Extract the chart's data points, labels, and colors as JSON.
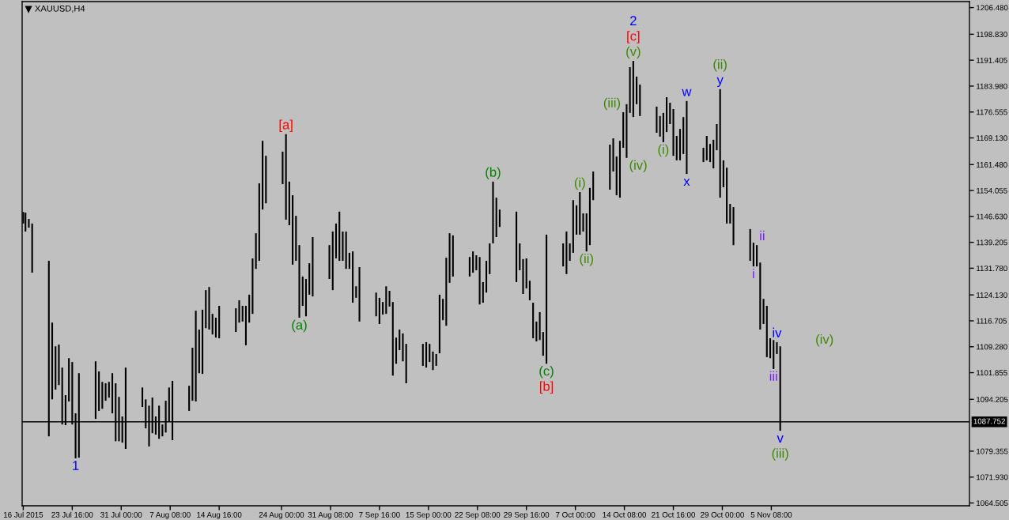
{
  "chart_data": {
    "type": "bar",
    "title": "XAUUSD,H4",
    "color": "#000000",
    "x": [
      "2015-07-16T08:00",
      "2015-07-16T16:00",
      "2015-07-17T04:00",
      "2015-07-17T16:00",
      "2015-07-20T04:00",
      "2015-07-20T16:00",
      "2015-07-21T04:00",
      "2015-07-21T16:00",
      "2015-07-22T04:00",
      "2015-07-22T16:00",
      "2015-07-23T04:00",
      "2015-07-23T16:00",
      "2015-07-24T04:00",
      "2015-07-24T16:00",
      "2015-07-27T04:00",
      "2015-07-27T16:00",
      "2015-07-28T04:00",
      "2015-07-28T16:00",
      "2015-07-29T04:00",
      "2015-07-29T16:00",
      "2015-07-30T04:00",
      "2015-07-30T16:00",
      "2015-07-31T04:00",
      "2015-07-31T16:00",
      "2015-08-03T04:00",
      "2015-08-03T16:00",
      "2015-08-04T04:00",
      "2015-08-04T16:00",
      "2015-08-05T04:00",
      "2015-08-05T16:00",
      "2015-08-06T04:00",
      "2015-08-06T16:00",
      "2015-08-07T04:00",
      "2015-08-07T16:00",
      "2015-08-10T04:00",
      "2015-08-10T16:00",
      "2015-08-11T04:00",
      "2015-08-11T16:00",
      "2015-08-12T04:00",
      "2015-08-12T16:00",
      "2015-08-13T04:00",
      "2015-08-13T16:00",
      "2015-08-14T04:00",
      "2015-08-14T16:00",
      "2015-08-17T04:00",
      "2015-08-17T16:00",
      "2015-08-18T04:00",
      "2015-08-18T16:00",
      "2015-08-19T04:00",
      "2015-08-19T16:00",
      "2015-08-20T04:00",
      "2015-08-20T16:00",
      "2015-08-21T04:00",
      "2015-08-21T16:00",
      "2015-08-24T04:00",
      "2015-08-24T16:00",
      "2015-08-25T04:00",
      "2015-08-25T16:00",
      "2015-08-26T04:00",
      "2015-08-26T16:00",
      "2015-08-27T04:00",
      "2015-08-27T16:00",
      "2015-08-28T04:00",
      "2015-08-28T16:00",
      "2015-08-31T04:00",
      "2015-08-31T16:00",
      "2015-09-01T04:00",
      "2015-09-01T16:00",
      "2015-09-02T04:00",
      "2015-09-02T16:00",
      "2015-09-03T04:00",
      "2015-09-03T16:00",
      "2015-09-04T04:00",
      "2015-09-04T16:00",
      "2015-09-07T04:00",
      "2015-09-07T16:00",
      "2015-09-08T04:00",
      "2015-09-08T16:00",
      "2015-09-09T04:00",
      "2015-09-09T16:00",
      "2015-09-10T04:00",
      "2015-09-10T16:00",
      "2015-09-11T04:00",
      "2015-09-11T16:00",
      "2015-09-14T04:00",
      "2015-09-14T16:00",
      "2015-09-15T04:00",
      "2015-09-15T16:00",
      "2015-09-16T04:00",
      "2015-09-16T16:00",
      "2015-09-17T04:00",
      "2015-09-17T16:00",
      "2015-09-18T04:00",
      "2015-09-18T16:00",
      "2015-09-21T04:00",
      "2015-09-21T16:00",
      "2015-09-22T04:00",
      "2015-09-22T16:00",
      "2015-09-23T04:00",
      "2015-09-23T16:00",
      "2015-09-24T04:00",
      "2015-09-24T16:00",
      "2015-09-25T04:00",
      "2015-09-25T16:00",
      "2015-09-28T04:00",
      "2015-09-28T16:00",
      "2015-09-29T04:00",
      "2015-09-29T16:00",
      "2015-09-30T04:00",
      "2015-09-30T16:00",
      "2015-10-01T04:00",
      "2015-10-01T16:00",
      "2015-10-02T04:00",
      "2015-10-02T16:00",
      "2015-10-05T04:00",
      "2015-10-05T16:00",
      "2015-10-06T04:00",
      "2015-10-06T16:00",
      "2015-10-07T04:00",
      "2015-10-07T16:00",
      "2015-10-08T04:00",
      "2015-10-08T16:00",
      "2015-10-09T04:00",
      "2015-10-09T16:00",
      "2015-10-12T04:00",
      "2015-10-12T16:00",
      "2015-10-13T04:00",
      "2015-10-13T16:00",
      "2015-10-14T04:00",
      "2015-10-14T16:00",
      "2015-10-15T04:00",
      "2015-10-15T16:00",
      "2015-10-16T04:00",
      "2015-10-16T16:00",
      "2015-10-19T04:00",
      "2015-10-19T16:00",
      "2015-10-20T04:00",
      "2015-10-20T16:00",
      "2015-10-21T04:00",
      "2015-10-21T16:00",
      "2015-10-22T04:00",
      "2015-10-22T16:00",
      "2015-10-23T04:00",
      "2015-10-23T16:00",
      "2015-10-26T04:00",
      "2015-10-26T16:00",
      "2015-10-27T04:00",
      "2015-10-27T16:00",
      "2015-10-28T04:00",
      "2015-10-28T16:00",
      "2015-10-29T04:00",
      "2015-10-29T16:00",
      "2015-10-30T04:00",
      "2015-10-30T16:00",
      "2015-11-02T04:00",
      "2015-11-02T16:00",
      "2015-11-03T04:00",
      "2015-11-03T16:00",
      "2015-11-04T04:00",
      "2015-11-04T16:00",
      "2015-11-05T04:00",
      "2015-11-05T16:00",
      "2015-11-06T04:00",
      "2015-11-06T16:00"
    ],
    "base": [
      1144.6,
      1142.3,
      1143.4,
      1130.5,
      1083.6,
      1094.2,
      1097.0,
      1098.3,
      1087.0,
      1086.8,
      1093.6,
      1087.0,
      1077.3,
      1077.5,
      1088.6,
      1090.9,
      1091.5,
      1093.8,
      1094.7,
      1090.2,
      1082.2,
      1082.2,
      1081.8,
      1080.0,
      1092.0,
      1085.9,
      1080.7,
      1084.5,
      1084.1,
      1082.9,
      1083.6,
      1084.7,
      1087.9,
      1082.5,
      1090.9,
      1093.8,
      1093.6,
      1101.7,
      1101.5,
      1114.6,
      1114.2,
      1112.8,
      1111.9,
      1111.7,
      1113.5,
      1116.2,
      1116.5,
      1109.7,
      1116.2,
      1118.7,
      1131.6,
      1133.9,
      1148.6,
      1150.4,
      1155.9,
      1145.7,
      1144.1,
      1132.8,
      1133.9,
      1117.6,
      1121.0,
      1118.0,
      1124.2,
      1123.7,
      1128.7,
      1125.5,
      1134.6,
      1133.9,
      1133.9,
      1131.6,
      1131.6,
      1121.9,
      1123.3,
      1116.5,
      1118.0,
      1115.8,
      1118.5,
      1118.7,
      1120.8,
      1101.0,
      1104.4,
      1108.3,
      1105.1,
      1098.8,
      1103.8,
      1103.3,
      1104.9,
      1102.6,
      1103.8,
      1107.4,
      1116.9,
      1115.3,
      1127.6,
      1129.4,
      1129.4,
      1130.5,
      1131.2,
      1121.4,
      1121.9,
      1124.8,
      1130.1,
      1138.9,
      1140.7,
      1143.6,
      1127.8,
      1131.2,
      1124.4,
      1126.0,
      1122.6,
      1111.7,
      1110.8,
      1111.2,
      1106.7,
      1104.4,
      1132.3,
      1130.1,
      1133.9,
      1136.2,
      1141.4,
      1141.4,
      1142.3,
      1136.6,
      1138.4,
      1151.3,
      1154.3,
      1159.5,
      1152.7,
      1152.0,
      1166.3,
      1163.4,
      1176.3,
      1175.1,
      1178.8,
      1175.4,
      1170.6,
      1169.5,
      1167.9,
      1170.8,
      1173.1,
      1164.0,
      1162.7,
      1162.7,
      1164.5,
      1158.8,
      1162.2,
      1162.7,
      1162.2,
      1160.4,
      1165.6,
      1152.0,
      1155.0,
      1144.6,
      1144.6,
      1138.4,
      1133.9,
      1132.3,
      1132.3,
      1114.2,
      1115.8,
      1106.3,
      1106.0,
      1102.9,
      1107.2,
      1085.2
    ],
    "values": [
      3.3,
      5.4,
      2.5,
      14.1,
      50.3,
      22.0,
      12.4,
      11.6,
      16.3,
      8.6,
      12.4,
      17.9,
      12.9,
      24.2,
      16.5,
      11.3,
      7.7,
      5.0,
      4.5,
      11.5,
      16.6,
      12.7,
      7.5,
      23.3,
      5.6,
      8.3,
      11.7,
      10.2,
      5.2,
      9.5,
      3.4,
      9.1,
      9.7,
      17.0,
      7.2,
      15.2,
      26.0,
      12.5,
      18.4,
      10.9,
      12.2,
      5.9,
      5.7,
      9.3,
      6.8,
      6.4,
      4.5,
      11.3,
      8.0,
      15.9,
      10.2,
      22.2,
      19.7,
      13.6,
      9.3,
      24.5,
      12.5,
      19.9,
      12.9,
      20.8,
      8.4,
      10.7,
      9.0,
      17.0,
      9.7,
      16.8,
      10.0,
      14.1,
      8.4,
      10.7,
      4.6,
      14.7,
      3.3,
      15.6,
      6.8,
      7.5,
      3.6,
      7.9,
      4.5,
      21.1,
      7.5,
      5.9,
      8.0,
      11.3,
      6.3,
      7.3,
      5.2,
      5.3,
      3.4,
      16.8,
      6.1,
      19.5,
      14.2,
      11.8,
      5.6,
      6.1,
      4.3,
      13.6,
      5.9,
      9.1,
      8.8,
      17.7,
      11.3,
      5.0,
      20.2,
      7.7,
      10.0,
      8.6,
      5.6,
      10.2,
      5.7,
      8.0,
      6.8,
      37.0,
      6.6,
      12.2,
      5.0,
      15.1,
      8.4,
      12.2,
      5.2,
      10.9,
      16.4,
      8.2,
      12.9,
      9.5,
      11.1,
      16.3,
      10.2,
      15.4,
      13.1,
      16.1,
      7.9,
      9.0,
      7.5,
      5.9,
      8.4,
      10.0,
      6.1,
      13.4,
      7.0,
      9.0,
      10.6,
      20.9,
      4.1,
      7.0,
      5.2,
      8.2,
      7.5,
      31.1,
      7.7,
      16.0,
      5.6,
      10.9,
      9.1,
      6.8,
      6.1,
      19.2,
      7.2,
      14.7,
      5.7,
      8.3,
      3.4,
      24.2
    ],
    "xlim": [
      "2015-07-16T04:00",
      "2015-12-05T00:00"
    ],
    "xticks": [
      {
        "value": "2015-07-16T08:00",
        "label": "16 Jul 2015"
      },
      {
        "value": "2015-07-23T16:00",
        "label": "23 Jul 16:00"
      },
      {
        "value": "2015-07-31T00:00",
        "label": "31 Jul 00:00"
      },
      {
        "value": "2015-08-07T08:00",
        "label": "7 Aug 08:00"
      },
      {
        "value": "2015-08-14T16:00",
        "label": "14 Aug 16:00"
      },
      {
        "value": "2015-08-24T00:00",
        "label": "24 Aug 00:00"
      },
      {
        "value": "2015-08-31T08:00",
        "label": "31 Aug 08:00"
      },
      {
        "value": "2015-09-07T16:00",
        "label": "7 Sep 16:00"
      },
      {
        "value": "2015-09-15T00:00",
        "label": "15 Sep 00:00"
      },
      {
        "value": "2015-09-22T08:00",
        "label": "22 Sep 08:00"
      },
      {
        "value": "2015-09-29T16:00",
        "label": "29 Sep 16:00"
      },
      {
        "value": "2015-10-07T00:00",
        "label": "7 Oct 00:00"
      },
      {
        "value": "2015-10-14T08:00",
        "label": "14 Oct 08:00"
      },
      {
        "value": "2015-10-21T16:00",
        "label": "21 Oct 16:00"
      },
      {
        "value": "2015-10-29T00:00",
        "label": "29 Oct 00:00"
      },
      {
        "value": "2015-11-05T08:00",
        "label": "5 Nov 08:00"
      }
    ],
    "ylim": [
      1063.7,
      1208.2
    ],
    "yticks": [
      {
        "value": 1206.48,
        "label": "1206.480"
      },
      {
        "value": 1198.83,
        "label": "1198.830"
      },
      {
        "value": 1191.405,
        "label": "1191.405"
      },
      {
        "value": 1183.98,
        "label": "1183.980"
      },
      {
        "value": 1176.555,
        "label": "1176.555"
      },
      {
        "value": 1169.13,
        "label": "1169.130"
      },
      {
        "value": 1161.48,
        "label": "1161.480"
      },
      {
        "value": 1154.055,
        "label": "1154.055"
      },
      {
        "value": 1146.63,
        "label": "1146.630"
      },
      {
        "value": 1139.205,
        "label": "1139.205"
      },
      {
        "value": 1131.78,
        "label": "1131.780"
      },
      {
        "value": 1124.13,
        "label": "1124.130"
      },
      {
        "value": 1116.705,
        "label": "1116.705"
      },
      {
        "value": 1109.28,
        "label": "1109.280"
      },
      {
        "value": 1101.855,
        "label": "1101.855"
      },
      {
        "value": 1094.205,
        "label": "1094.205"
      },
      {
        "value": 1079.355,
        "label": "1079.355"
      },
      {
        "value": 1071.93,
        "label": "1071.930"
      },
      {
        "value": 1064.505,
        "label": "1064.505"
      }
    ],
    "ref_lines": [
      {
        "axis": "y",
        "value": 1087.752,
        "label": "1087.752",
        "color": "#000000"
      }
    ],
    "annotations": [
      {
        "text": "1",
        "x": "2015-07-24T04:00",
        "y": 1077.3
      },
      {
        "text": "[a]",
        "x": "2015-08-24T16:00",
        "y": 1170.2
      },
      {
        "text": "(a)",
        "x": "2015-08-26T16:00",
        "y": 1117.6
      },
      {
        "text": "(b)",
        "x": "2015-09-24T16:00",
        "y": 1156.6
      },
      {
        "text": "(c)",
        "x": "2015-10-02T16:00",
        "y": 1104.4
      },
      {
        "text": "[b]",
        "x": "2015-10-02T16:00",
        "y": 1104.4
      },
      {
        "text": "(i)",
        "x": "2015-10-07T16:00",
        "y": 1153.6
      },
      {
        "text": "(ii)",
        "x": "2015-10-08T16:00",
        "y": 1136.6
      },
      {
        "text": "(iii)",
        "x": "2015-10-14T04:00",
        "y": 1176.5
      },
      {
        "text": "(iv)",
        "x": "2015-10-14T16:00",
        "y": 1163.4
      },
      {
        "text": "(v)",
        "x": "2015-10-15T16:00",
        "y": 1191.2
      },
      {
        "text": "[c]",
        "x": "2015-10-15T16:00",
        "y": 1191.2
      },
      {
        "text": "2",
        "x": "2015-10-15T16:00",
        "y": 1191.2
      },
      {
        "text": "(i)",
        "x": "2015-10-20T04:00",
        "y": 1167.9
      },
      {
        "text": "w",
        "x": "2015-10-23T16:00",
        "y": 1179.7
      },
      {
        "text": "x",
        "x": "2015-10-23T16:00",
        "y": 1158.8
      },
      {
        "text": "y",
        "x": "2015-10-28T16:00",
        "y": 1183.1
      },
      {
        "text": "(ii)",
        "x": "2015-10-28T16:00",
        "y": 1183.1
      },
      {
        "text": "ii",
        "x": "2015-11-03T04:00",
        "y": 1138.4
      },
      {
        "text": "i",
        "x": "2015-11-02T16:00",
        "y": 1132.3
      },
      {
        "text": "iii",
        "x": "2015-11-05T16:00",
        "y": 1102.9
      },
      {
        "text": "iv",
        "x": "2015-11-06T04:00",
        "y": 1110.6
      },
      {
        "text": "v",
        "x": "2015-11-06T16:00",
        "y": 1085.2
      },
      {
        "text": "(iii)",
        "x": "2015-11-06T16:00",
        "y": 1085.2
      },
      "(iv)"
    ]
  }
}
